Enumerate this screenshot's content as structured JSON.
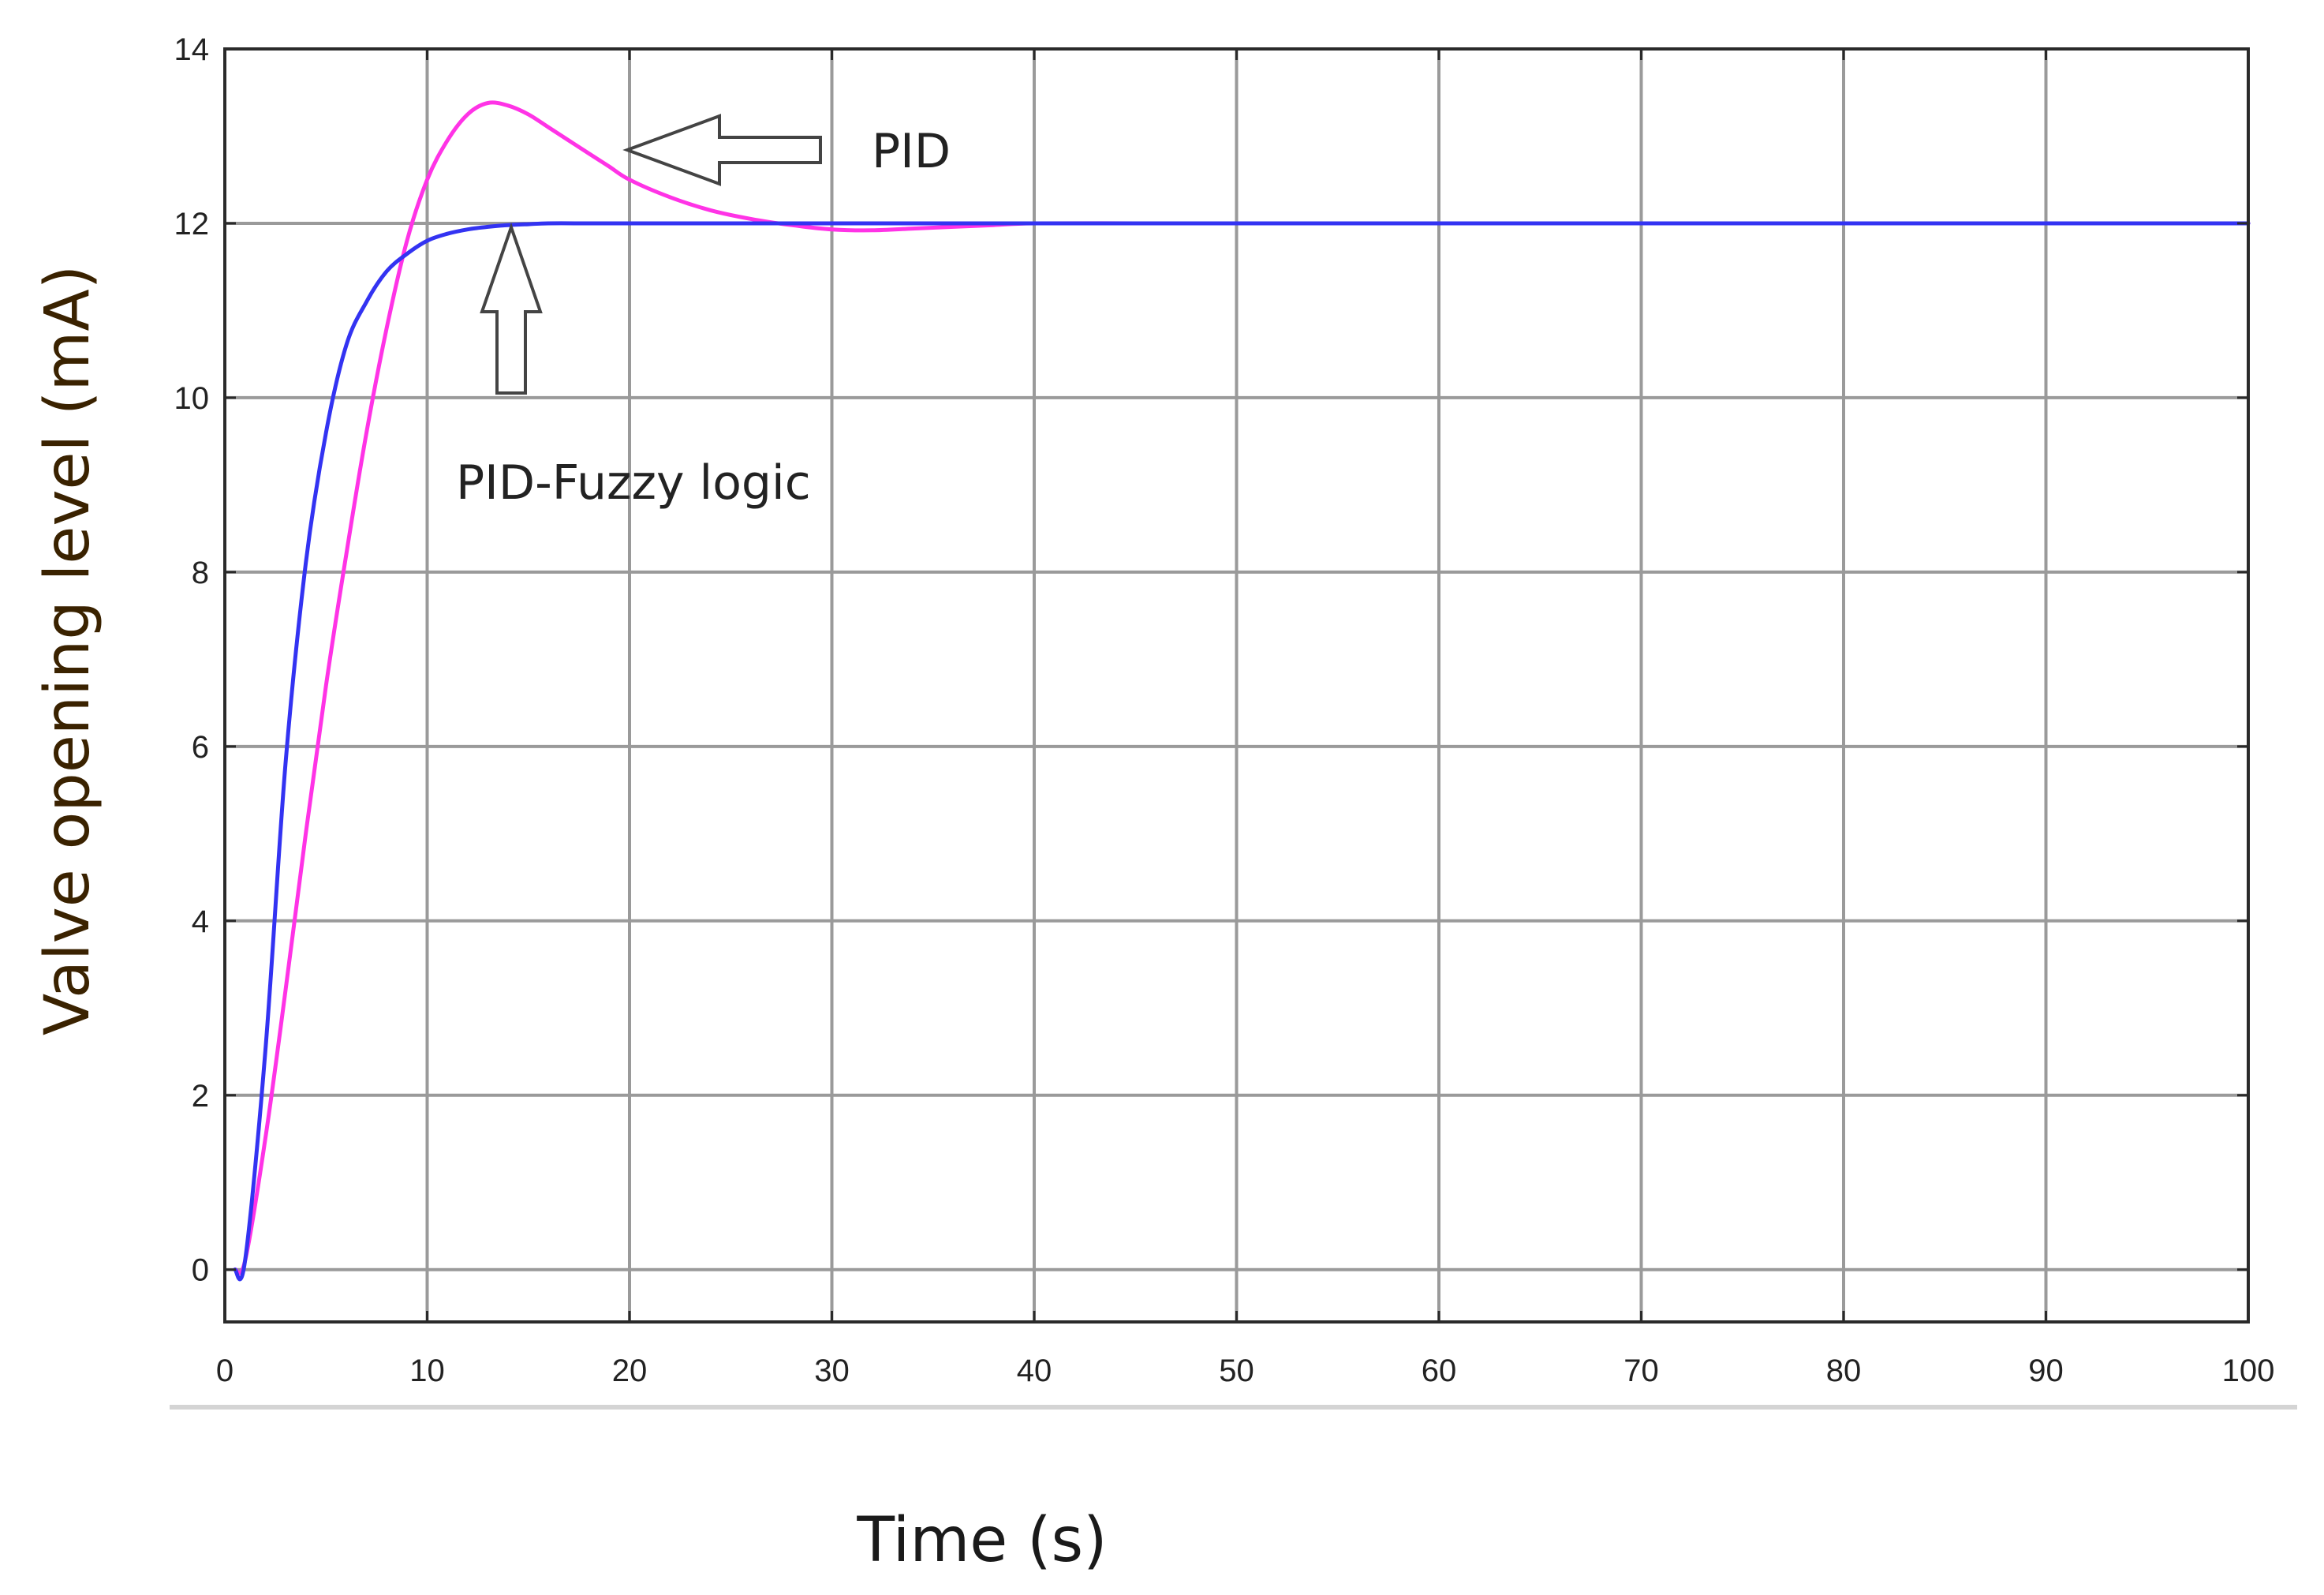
{
  "chart_data": {
    "type": "line",
    "xlabel": "Time (s)",
    "ylabel": "Valve opening level (mA)",
    "xlim": [
      0,
      100
    ],
    "ylim": [
      -0.6,
      14
    ],
    "x_ticks": [
      0,
      10,
      20,
      30,
      40,
      50,
      60,
      70,
      80,
      90,
      100
    ],
    "y_ticks": [
      0,
      2,
      4,
      6,
      8,
      10,
      12,
      14
    ],
    "grid": true,
    "series": [
      {
        "name": "PID",
        "color": "#ff33e6",
        "x": [
          0.5,
          1,
          2,
          3,
          4,
          5,
          6,
          7,
          8,
          9,
          10,
          11,
          12,
          13,
          14,
          15,
          16,
          17,
          18,
          19,
          20,
          22,
          24,
          26,
          28,
          30,
          32,
          34,
          36,
          38,
          40,
          45,
          50,
          60,
          70,
          80,
          90,
          100
        ],
        "y": [
          0,
          0.1,
          1.5,
          3.2,
          5.0,
          6.7,
          8.2,
          9.6,
          10.8,
          11.8,
          12.5,
          12.95,
          13.25,
          13.38,
          13.35,
          13.25,
          13.1,
          12.95,
          12.8,
          12.65,
          12.5,
          12.3,
          12.15,
          12.05,
          11.98,
          11.93,
          11.92,
          11.94,
          11.96,
          11.98,
          12.0,
          12.0,
          12.0,
          12.0,
          12.0,
          12.0,
          12.0,
          12.0
        ]
      },
      {
        "name": "PID-Fuzzy logic",
        "color": "#3333f2",
        "x": [
          0.5,
          1,
          2,
          3,
          4,
          5,
          6,
          7,
          8,
          9,
          10,
          11,
          12,
          13,
          14,
          15,
          16,
          18,
          20,
          25,
          30,
          40,
          50,
          60,
          70,
          80,
          90,
          100
        ],
        "y": [
          0,
          0.1,
          2.5,
          5.8,
          8.1,
          9.6,
          10.6,
          11.1,
          11.45,
          11.65,
          11.8,
          11.88,
          11.93,
          11.96,
          11.98,
          11.99,
          12.0,
          12.0,
          12.0,
          12.0,
          12.0,
          12.0,
          12.0,
          12.0,
          12.0,
          12.0,
          12.0,
          12.0
        ]
      }
    ],
    "annotations": [
      {
        "text": "PID",
        "arrow": "left"
      },
      {
        "text": "PID-Fuzzy logic",
        "arrow": "up"
      }
    ]
  }
}
